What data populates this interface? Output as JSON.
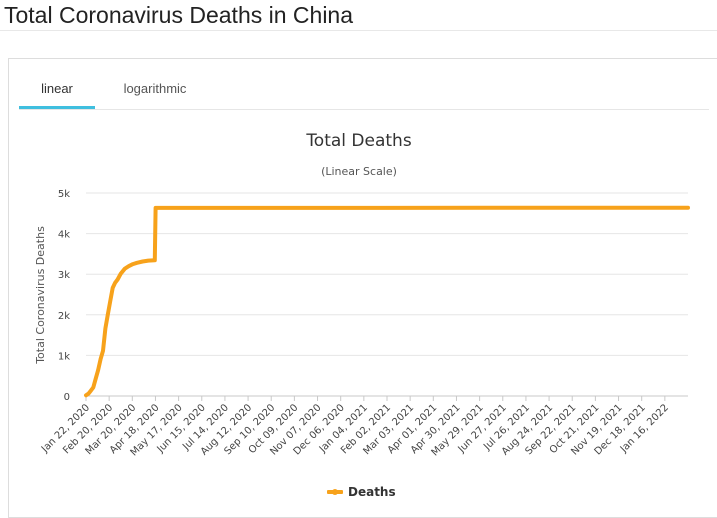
{
  "page": {
    "title": "Total Coronavirus Deaths in China"
  },
  "tabs": [
    {
      "label": "linear",
      "active": true
    },
    {
      "label": "logarithmic",
      "active": false
    }
  ],
  "colors": {
    "series": "#f7a21b",
    "tab_accent": "#3fbfdf",
    "grid": "#e6e6e6"
  },
  "chart_data": {
    "type": "line",
    "title": "Total Deaths",
    "subtitle": "(Linear Scale)",
    "ylabel": "Total Coronavirus Deaths",
    "xlabel": "",
    "ylim": [
      0,
      5000
    ],
    "yticks": [
      0,
      1000,
      2000,
      3000,
      4000,
      5000
    ],
    "ytick_labels": [
      "0",
      "1k",
      "2k",
      "3k",
      "4k",
      "5k"
    ],
    "xlim": [
      "2020-01-22",
      "2022-02-04"
    ],
    "xtick_labels": [
      "Jan 22, 2020",
      "Feb 20, 2020",
      "Mar 20, 2020",
      "Apr 18, 2020",
      "May 17, 2020",
      "Jun 15, 2020",
      "Jul 14, 2020",
      "Aug 12, 2020",
      "Sep 10, 2020",
      "Oct 09, 2020",
      "Nov 07, 2020",
      "Dec 06, 2020",
      "Jan 04, 2021",
      "Feb 02, 2021",
      "Mar 03, 2021",
      "Apr 01, 2021",
      "Apr 30, 2021",
      "May 29, 2021",
      "Jun 27, 2021",
      "Jul 26, 2021",
      "Aug 24, 2021",
      "Sep 22, 2021",
      "Oct 21, 2021",
      "Nov 19, 2021",
      "Dec 18, 2021",
      "Jan 16, 2022"
    ],
    "grid": true,
    "legend": "bottom-center",
    "series": [
      {
        "name": "Deaths",
        "points": [
          [
            "2020-01-22",
            17
          ],
          [
            "2020-01-25",
            56
          ],
          [
            "2020-01-28",
            132
          ],
          [
            "2020-01-31",
            213
          ],
          [
            "2020-02-03",
            425
          ],
          [
            "2020-02-06",
            636
          ],
          [
            "2020-02-09",
            908
          ],
          [
            "2020-02-12",
            1113
          ],
          [
            "2020-02-15",
            1665
          ],
          [
            "2020-02-18",
            2004
          ],
          [
            "2020-02-21",
            2345
          ],
          [
            "2020-02-24",
            2663
          ],
          [
            "2020-02-27",
            2788
          ],
          [
            "2020-03-01",
            2870
          ],
          [
            "2020-03-05",
            3015
          ],
          [
            "2020-03-10",
            3136
          ],
          [
            "2020-03-15",
            3199
          ],
          [
            "2020-03-20",
            3248
          ],
          [
            "2020-03-25",
            3281
          ],
          [
            "2020-04-01",
            3312
          ],
          [
            "2020-04-08",
            3335
          ],
          [
            "2020-04-16",
            3342
          ],
          [
            "2020-04-17",
            4632
          ],
          [
            "2020-06-01",
            4634
          ],
          [
            "2021-01-01",
            4634
          ],
          [
            "2021-06-01",
            4636
          ],
          [
            "2022-02-04",
            4636
          ]
        ]
      }
    ]
  }
}
